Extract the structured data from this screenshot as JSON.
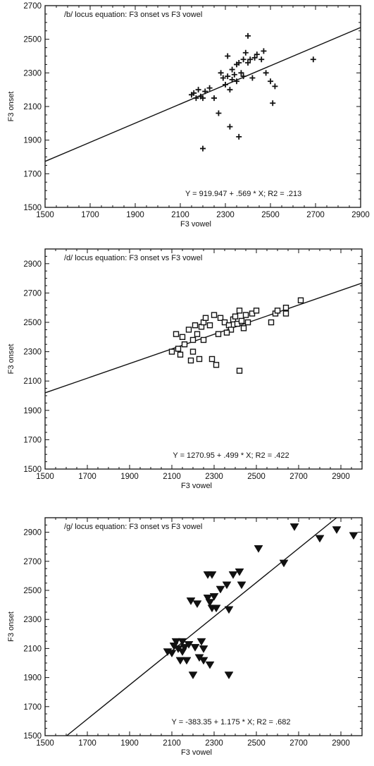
{
  "chart_data": [
    {
      "type": "scatter",
      "title": "/b/ locus equation: F3 onset vs F3 vowel",
      "xlabel": "F3 vowel",
      "ylabel": "F3 onset",
      "xlim": [
        1500,
        2900
      ],
      "ylim": [
        1500,
        2700
      ],
      "xticks": [
        1500,
        1700,
        1900,
        2100,
        2300,
        2500,
        2700,
        2900
      ],
      "yticks": [
        1500,
        1700,
        1900,
        2100,
        2300,
        2500,
        2700
      ],
      "marker": "plus",
      "equation": "Y = 919.947 + .569 * X; R2 = .213",
      "regression": {
        "intercept": 919.947,
        "slope": 0.569
      },
      "points": [
        [
          2150,
          2170
        ],
        [
          2160,
          2180
        ],
        [
          2170,
          2150
        ],
        [
          2180,
          2200
        ],
        [
          2190,
          2160
        ],
        [
          2200,
          2150
        ],
        [
          2210,
          2190
        ],
        [
          2230,
          2210
        ],
        [
          2250,
          2150
        ],
        [
          2270,
          2060
        ],
        [
          2280,
          2300
        ],
        [
          2290,
          2270
        ],
        [
          2300,
          2230
        ],
        [
          2310,
          2280
        ],
        [
          2310,
          2400
        ],
        [
          2320,
          2200
        ],
        [
          2320,
          1980
        ],
        [
          2330,
          2320
        ],
        [
          2340,
          2290
        ],
        [
          2350,
          2350
        ],
        [
          2350,
          2250
        ],
        [
          2360,
          2360
        ],
        [
          2370,
          2300
        ],
        [
          2380,
          2280
        ],
        [
          2380,
          2380
        ],
        [
          2390,
          2420
        ],
        [
          2400,
          2360
        ],
        [
          2400,
          2520
        ],
        [
          2410,
          2380
        ],
        [
          2420,
          2270
        ],
        [
          2430,
          2390
        ],
        [
          2440,
          2410
        ],
        [
          2460,
          2380
        ],
        [
          2470,
          2430
        ],
        [
          2480,
          2300
        ],
        [
          2500,
          2250
        ],
        [
          2510,
          2120
        ],
        [
          2520,
          2220
        ],
        [
          2360,
          1920
        ],
        [
          2200,
          1850
        ],
        [
          2690,
          2380
        ],
        [
          2330,
          2260
        ]
      ]
    },
    {
      "type": "scatter",
      "title": "/d/ locus equation: F3 onset vs F3 vowel",
      "xlabel": "F3 vowel",
      "ylabel": "F3 onset",
      "xlim": [
        1500,
        3000
      ],
      "ylim": [
        1500,
        3000
      ],
      "xticks": [
        1500,
        1700,
        1900,
        2100,
        2300,
        2500,
        2700,
        2900
      ],
      "yticks": [
        1500,
        1700,
        1900,
        2100,
        2300,
        2500,
        2700,
        2900
      ],
      "marker": "square",
      "equation": "Y = 1270.95 + .499 * X; R2 = .422",
      "regression": {
        "intercept": 1270.95,
        "slope": 0.499
      },
      "points": [
        [
          2100,
          2300
        ],
        [
          2120,
          2420
        ],
        [
          2130,
          2320
        ],
        [
          2140,
          2280
        ],
        [
          2150,
          2400
        ],
        [
          2160,
          2350
        ],
        [
          2180,
          2450
        ],
        [
          2190,
          2240
        ],
        [
          2200,
          2300
        ],
        [
          2200,
          2380
        ],
        [
          2210,
          2480
        ],
        [
          2220,
          2420
        ],
        [
          2230,
          2250
        ],
        [
          2240,
          2470
        ],
        [
          2250,
          2380
        ],
        [
          2250,
          2500
        ],
        [
          2260,
          2530
        ],
        [
          2280,
          2480
        ],
        [
          2290,
          2250
        ],
        [
          2300,
          2550
        ],
        [
          2310,
          2210
        ],
        [
          2320,
          2420
        ],
        [
          2330,
          2530
        ],
        [
          2350,
          2500
        ],
        [
          2370,
          2480
        ],
        [
          2380,
          2450
        ],
        [
          2390,
          2520
        ],
        [
          2400,
          2540
        ],
        [
          2410,
          2490
        ],
        [
          2420,
          2580
        ],
        [
          2430,
          2510
        ],
        [
          2440,
          2460
        ],
        [
          2450,
          2550
        ],
        [
          2460,
          2500
        ],
        [
          2480,
          2560
        ],
        [
          2500,
          2580
        ],
        [
          2570,
          2500
        ],
        [
          2590,
          2560
        ],
        [
          2600,
          2580
        ],
        [
          2640,
          2600
        ],
        [
          2640,
          2560
        ],
        [
          2710,
          2650
        ],
        [
          2420,
          2170
        ],
        [
          2360,
          2430
        ]
      ]
    },
    {
      "type": "scatter",
      "title": "/g/ locus equation: F3 onset vs F3 vowel",
      "xlabel": "F3 vowel",
      "ylabel": "F3 onset",
      "xlim": [
        1500,
        3000
      ],
      "ylim": [
        1500,
        3000
      ],
      "xticks": [
        1500,
        1700,
        1900,
        2100,
        2300,
        2500,
        2700,
        2900
      ],
      "yticks": [
        1500,
        1700,
        1900,
        2100,
        2300,
        2500,
        2700,
        2900
      ],
      "marker": "triangle-down",
      "equation": "Y = -383.35 + 1.175 * X; R2 = .682",
      "regression": {
        "intercept": -383.35,
        "slope": 1.175
      },
      "points": [
        [
          2080,
          2080
        ],
        [
          2100,
          2070
        ],
        [
          2110,
          2120
        ],
        [
          2120,
          2150
        ],
        [
          2130,
          2100
        ],
        [
          2140,
          2020
        ],
        [
          2150,
          2150
        ],
        [
          2150,
          2080
        ],
        [
          2160,
          2110
        ],
        [
          2170,
          2020
        ],
        [
          2180,
          2130
        ],
        [
          2190,
          2430
        ],
        [
          2200,
          1920
        ],
        [
          2210,
          2110
        ],
        [
          2220,
          2410
        ],
        [
          2230,
          2040
        ],
        [
          2240,
          2150
        ],
        [
          2250,
          2100
        ],
        [
          2250,
          2020
        ],
        [
          2270,
          2610
        ],
        [
          2270,
          2450
        ],
        [
          2280,
          2420
        ],
        [
          2280,
          1990
        ],
        [
          2290,
          2380
        ],
        [
          2300,
          2460
        ],
        [
          2310,
          2380
        ],
        [
          2330,
          2510
        ],
        [
          2360,
          2540
        ],
        [
          2370,
          2370
        ],
        [
          2370,
          1920
        ],
        [
          2390,
          2610
        ],
        [
          2420,
          2630
        ],
        [
          2430,
          2540
        ],
        [
          2510,
          2790
        ],
        [
          2630,
          2690
        ],
        [
          2680,
          2940
        ],
        [
          2800,
          2860
        ],
        [
          2880,
          2920
        ],
        [
          2960,
          2880
        ],
        [
          2290,
          2610
        ]
      ]
    }
  ]
}
